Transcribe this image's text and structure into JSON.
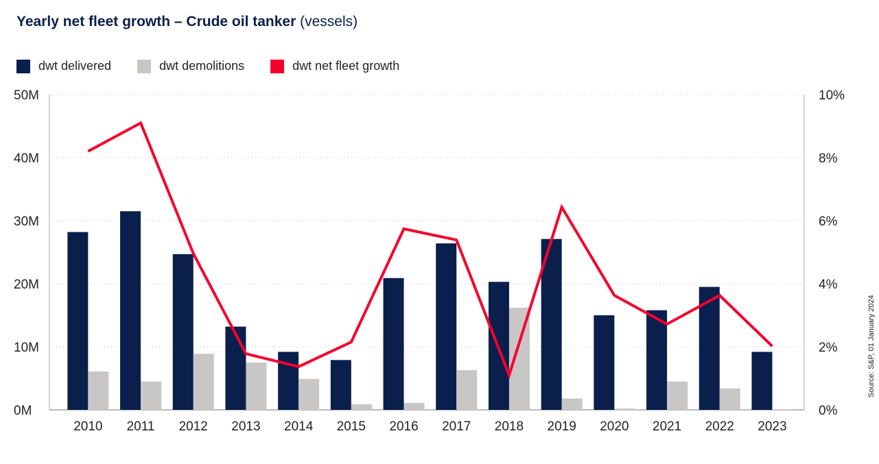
{
  "title": {
    "main": "Yearly net fleet growth – Crude oil tanker",
    "sub": "(vessels)"
  },
  "source": "Source: S&P, 01 January 2024",
  "chart_data": {
    "type": "bar+line",
    "title": "Yearly net fleet growth – Crude oil tanker (vessels)",
    "categories": [
      "2010",
      "2011",
      "2012",
      "2013",
      "2014",
      "2015",
      "2016",
      "2017",
      "2018",
      "2019",
      "2020",
      "2021",
      "2022",
      "2023"
    ],
    "series": [
      {
        "name": "dwt delivered",
        "type": "bar",
        "axis": "left",
        "color": "#0b1f4d",
        "values": [
          28.2,
          31.5,
          24.7,
          13.2,
          9.2,
          7.9,
          20.9,
          26.4,
          20.3,
          27.1,
          15.0,
          15.8,
          19.5,
          9.2
        ]
      },
      {
        "name": "dwt demolitions",
        "type": "bar",
        "axis": "left",
        "color": "#c8c7c6",
        "values": [
          6.1,
          4.5,
          8.9,
          7.5,
          4.9,
          0.9,
          1.1,
          6.3,
          16.2,
          1.8,
          0.2,
          4.5,
          3.4,
          0.1
        ]
      },
      {
        "name": "dwt net fleet growth",
        "type": "line",
        "axis": "right",
        "color": "#f5002d",
        "values": [
          8.2,
          9.1,
          4.96,
          1.78,
          1.37,
          2.15,
          5.74,
          5.39,
          1.1,
          6.43,
          3.63,
          2.72,
          3.63,
          2.02
        ]
      }
    ],
    "left_axis": {
      "range": [
        0,
        50
      ],
      "unit": "M",
      "ticks": [
        "0M",
        "10M",
        "20M",
        "30M",
        "40M",
        "50M"
      ]
    },
    "right_axis": {
      "range": [
        0,
        10
      ],
      "unit": "%",
      "ticks": [
        "0%",
        "2%",
        "4%",
        "6%",
        "8%",
        "10%"
      ]
    },
    "grid": "horizontal dotted",
    "legend": "top-left"
  }
}
